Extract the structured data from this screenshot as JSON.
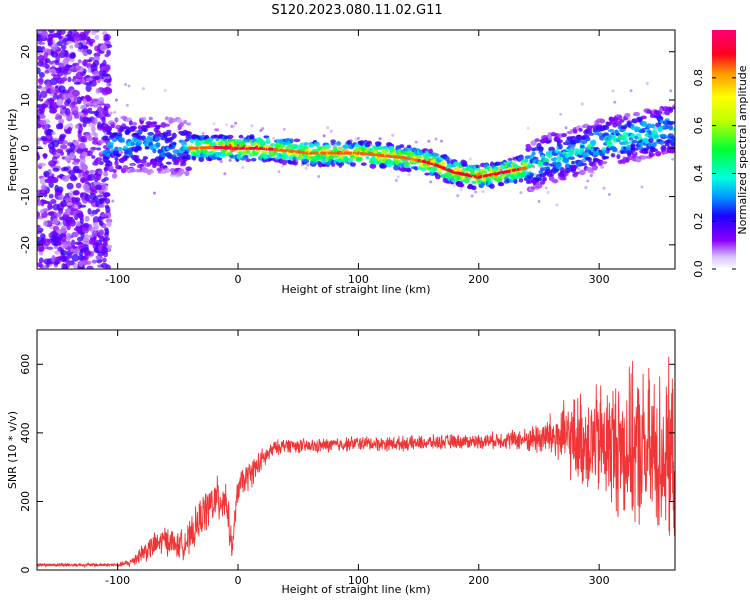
{
  "title": "S120.2023.080.11.02.G11",
  "chart_data": [
    {
      "type": "heatmap",
      "xlabel": "Height of straight line (km)",
      "ylabel": "Frequency (Hz)",
      "xlim": [
        -167,
        363
      ],
      "ylim": [
        -25,
        24.5
      ],
      "xticks": [
        "-100",
        "0",
        "100",
        "200",
        "300"
      ],
      "yticks": [
        "-20",
        "-10",
        "0",
        "10",
        "20"
      ],
      "colorbar": {
        "label": "Normalized spectral amplitude",
        "range": [
          0,
          1
        ],
        "ticks": [
          "0.0",
          "0.2",
          "0.4",
          "0.6",
          "0.8"
        ]
      },
      "ridge": {
        "x": [
          -110,
          -80,
          -60,
          -40,
          -20,
          0,
          20,
          40,
          60,
          80,
          100,
          120,
          140,
          160,
          180,
          200,
          220,
          240,
          260,
          280,
          300,
          320,
          340,
          363
        ],
        "freq": [
          0,
          1,
          0.5,
          0,
          0.2,
          0,
          0,
          -0.5,
          -1,
          -1,
          -1,
          -1.5,
          -2,
          -3,
          -5,
          -6,
          -5,
          -4,
          -2,
          -1,
          1,
          2,
          3,
          4
        ]
      }
    },
    {
      "type": "line",
      "xlabel": "Height of straight line (km)",
      "ylabel": "SNR (10 * v/v)",
      "xlim": [
        -167,
        363
      ],
      "ylim": [
        0,
        700
      ],
      "xticks": [
        "-100",
        "0",
        "100",
        "200",
        "300"
      ],
      "yticks": [
        "0",
        "200",
        "400",
        "600"
      ],
      "color": "#ef3535",
      "envelope": {
        "x": [
          -167,
          -120,
          -100,
          -90,
          -80,
          -60,
          -50,
          -40,
          -30,
          -20,
          -10,
          -5,
          0,
          10,
          20,
          30,
          40,
          60,
          80,
          100,
          120,
          150,
          180,
          200,
          220,
          240,
          260,
          280,
          300,
          320,
          340,
          363
        ],
        "mean": [
          15,
          15,
          15,
          20,
          50,
          90,
          70,
          90,
          160,
          200,
          210,
          60,
          240,
          280,
          320,
          355,
          365,
          360,
          365,
          370,
          368,
          370,
          375,
          375,
          380,
          380,
          390,
          380,
          370,
          360,
          340,
          330
        ],
        "spread": [
          6,
          6,
          6,
          15,
          35,
          50,
          45,
          60,
          70,
          80,
          80,
          40,
          50,
          50,
          40,
          25,
          25,
          25,
          25,
          25,
          25,
          25,
          25,
          25,
          30,
          40,
          80,
          150,
          200,
          250,
          280,
          300
        ]
      }
    }
  ]
}
